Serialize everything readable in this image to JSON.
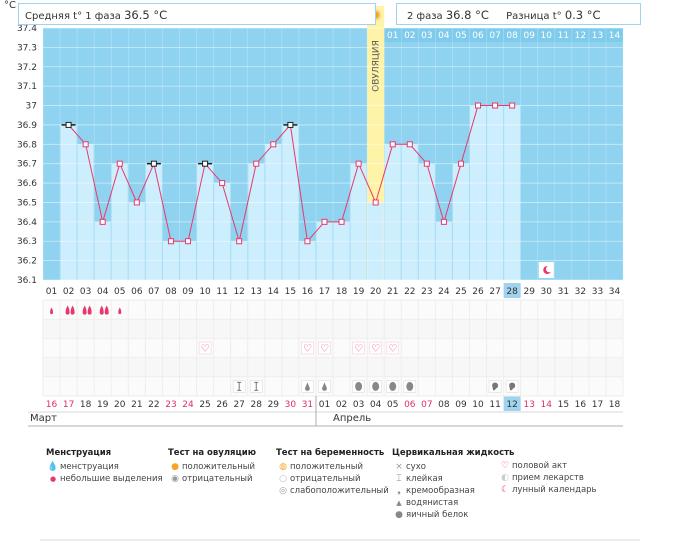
{
  "header": {
    "unit": "°C",
    "phase1_label": "Средняя t° 1 фаза",
    "phase1_value": "36.5 °C",
    "phase2_label": "2 фаза",
    "phase2_value": "36.8 °C",
    "diff_label": "Разница t°",
    "diff_value": "0.3 °C",
    "ovulation_label": "ОВУЛЯЦИЯ"
  },
  "chart_data": {
    "type": "line",
    "ylim": [
      36.1,
      37.4
    ],
    "yticks": [
      "36.1",
      "36.2",
      "36.3",
      "36.4",
      "36.5",
      "36.6",
      "36.7",
      "36.8",
      "36.9",
      "37",
      "37.1",
      "37.2",
      "37.3",
      "37.4"
    ],
    "cycle_days": [
      "01",
      "02",
      "03",
      "04",
      "05",
      "06",
      "07",
      "08",
      "09",
      "10",
      "11",
      "12",
      "13",
      "14",
      "15",
      "16",
      "17",
      "18",
      "19",
      "20",
      "21",
      "22",
      "23",
      "24",
      "25",
      "26",
      "27",
      "28",
      "29",
      "30",
      "31",
      "32",
      "33",
      "34"
    ],
    "phase2_days": [
      "01",
      "02",
      "03",
      "04",
      "05",
      "06",
      "07",
      "08",
      "09",
      "10",
      "11",
      "12",
      "13",
      "14"
    ],
    "ovulation_day": 20,
    "current_cycle_day": 28,
    "series": [
      {
        "values": [
          null,
          36.9,
          36.8,
          36.4,
          36.7,
          36.5,
          36.7,
          36.3,
          36.3,
          36.7,
          36.6,
          36.3,
          36.7,
          36.8,
          36.9,
          36.3,
          36.4,
          36.4,
          36.7,
          36.5,
          36.8,
          36.8,
          36.7,
          36.4,
          36.7,
          37.0,
          37.0,
          37.0,
          null,
          null,
          null,
          null,
          null,
          null
        ]
      }
    ],
    "excluded_days": [
      2,
      7,
      10,
      15
    ],
    "calendar_dates": [
      "16",
      "17",
      "18",
      "19",
      "20",
      "21",
      "22",
      "23",
      "24",
      "25",
      "26",
      "27",
      "28",
      "29",
      "30",
      "31",
      "01",
      "02",
      "03",
      "04",
      "05",
      "06",
      "07",
      "08",
      "09",
      "10",
      "11",
      "12",
      "13",
      "14",
      "15",
      "16",
      "17",
      "18"
    ],
    "weekend_days": [
      1,
      2,
      8,
      9,
      15,
      16,
      22,
      23,
      29,
      30
    ],
    "months": [
      "Март",
      "Апрель"
    ],
    "menstruation": {
      "heavy": [
        2,
        3,
        4
      ],
      "light": [
        1,
        5
      ]
    },
    "sex_days": [
      10,
      16,
      17,
      19,
      20,
      21
    ],
    "cervical_sticky": [
      12,
      13
    ],
    "cervical_watery": [
      16,
      17
    ],
    "cervical_eggwhite": [
      19,
      20,
      21,
      22
    ],
    "cervical_creamy": [
      27,
      28
    ],
    "lunar_day": 30
  },
  "legend": {
    "menstruation": {
      "title": "Менструация",
      "items": [
        "менструация",
        "небольшие выделения"
      ]
    },
    "ovulation_test": {
      "title": "Тест на овуляцию",
      "items": [
        "положительный",
        "отрицательный"
      ]
    },
    "pregnancy_test": {
      "title": "Тест на беременность",
      "items": [
        "положительный",
        "отрицательный",
        "слабоположительный"
      ]
    },
    "cervical": {
      "title": "Цервикальная жидкость",
      "items": [
        "сухо",
        "клейкая",
        "кремообразная",
        "водянистая",
        "яичный белок"
      ]
    },
    "other": {
      "items": [
        "половой акт",
        "прием лекарств",
        "лунный календарь"
      ]
    }
  },
  "colors": {
    "bar": "#cdeefd",
    "plot": "#8fd3f0",
    "grid": "#ffffff",
    "line": "#e8386d",
    "ovulation": "#fff3a8",
    "weekend": "#e03060",
    "today": "#9fd3ef"
  }
}
